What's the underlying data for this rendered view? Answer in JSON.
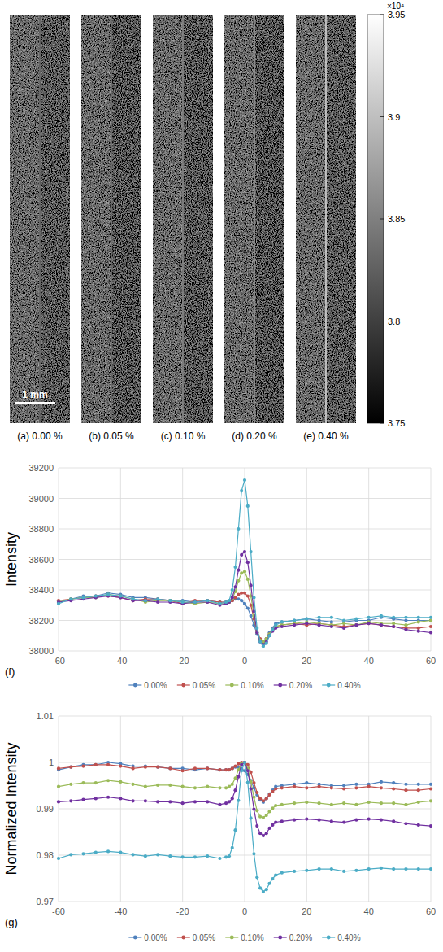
{
  "chart_data": [
    {
      "type": "image",
      "panels": [
        {
          "label": "(a) 0.00 %",
          "left": 38330,
          "right": 38200,
          "edge": 38330
        },
        {
          "label": "(b) 0.05 %",
          "left": 38330,
          "right": 38170,
          "edge": 38380
        },
        {
          "label": "(c) 0.10 %",
          "left": 38330,
          "right": 38180,
          "edge": 38520
        },
        {
          "label": "(d) 0.20 %",
          "left": 38330,
          "right": 38160,
          "edge": 38650
        },
        {
          "label": "(e) 0.40 %",
          "left": 38330,
          "right": 38210,
          "edge": 39120
        }
      ],
      "scale_bar": "1 mm",
      "colorbar": {
        "lim": [
          37500,
          39500
        ],
        "ticks": [
          {
            "value": 37500,
            "label": "3.75"
          },
          {
            "value": 38000,
            "label": "3.8"
          },
          {
            "value": 38500,
            "label": "3.85"
          },
          {
            "value": 39000,
            "label": "3.9"
          },
          {
            "value": 39500,
            "label": "3.95"
          }
        ],
        "multiplier": "×10⁴"
      }
    },
    {
      "type": "line",
      "panel": "(f)",
      "ylabel": "Intensity",
      "x": [
        -60,
        -56,
        -52,
        -48,
        -44,
        -40,
        -36,
        -32,
        -28,
        -24,
        -20,
        -16,
        -12,
        -8,
        -6,
        -5,
        -4,
        -3,
        -2,
        -1,
        0,
        1,
        2,
        3,
        4,
        5,
        6,
        7,
        8,
        9,
        10,
        12,
        16,
        20,
        24,
        28,
        32,
        36,
        40,
        44,
        48,
        52,
        56,
        60
      ],
      "xlim": [
        -60,
        60
      ],
      "xticks": [
        -60,
        -40,
        -20,
        0,
        20,
        40,
        60
      ],
      "ylim": [
        38000,
        39200
      ],
      "yticks": [
        38000,
        38200,
        38400,
        38600,
        38800,
        39000,
        39200
      ],
      "grid": true,
      "legend": "bottom",
      "marker": "circle",
      "series": [
        {
          "name": "0.00%",
          "color": "#4f81bd",
          "values": [
            38320,
            38340,
            38360,
            38360,
            38380,
            38370,
            38350,
            38350,
            38340,
            38330,
            38330,
            38320,
            38330,
            38320,
            38320,
            38320,
            38330,
            38340,
            38340,
            38330,
            38310,
            38280,
            38230,
            38170,
            38110,
            38070,
            38050,
            38080,
            38120,
            38150,
            38180,
            38190,
            38200,
            38210,
            38200,
            38190,
            38190,
            38200,
            38200,
            38220,
            38210,
            38200,
            38200,
            38200
          ]
        },
        {
          "name": "0.05%",
          "color": "#c0504d",
          "values": [
            38330,
            38340,
            38350,
            38360,
            38360,
            38350,
            38330,
            38340,
            38340,
            38330,
            38310,
            38330,
            38330,
            38320,
            38320,
            38320,
            38330,
            38350,
            38370,
            38380,
            38380,
            38360,
            38300,
            38210,
            38130,
            38080,
            38060,
            38080,
            38110,
            38140,
            38160,
            38170,
            38180,
            38170,
            38180,
            38170,
            38160,
            38170,
            38180,
            38170,
            38160,
            38150,
            38150,
            38160
          ]
        },
        {
          "name": "0.10%",
          "color": "#9bbb59",
          "values": [
            38320,
            38340,
            38350,
            38350,
            38370,
            38360,
            38340,
            38320,
            38330,
            38330,
            38320,
            38310,
            38320,
            38310,
            38310,
            38320,
            38340,
            38390,
            38460,
            38510,
            38520,
            38470,
            38360,
            38230,
            38120,
            38070,
            38060,
            38080,
            38110,
            38140,
            38160,
            38170,
            38180,
            38190,
            38180,
            38170,
            38180,
            38170,
            38190,
            38180,
            38180,
            38170,
            38190,
            38200
          ]
        },
        {
          "name": "0.20%",
          "color": "#7030a0",
          "values": [
            38320,
            38330,
            38340,
            38350,
            38360,
            38350,
            38330,
            38330,
            38320,
            38320,
            38310,
            38320,
            38320,
            38300,
            38310,
            38320,
            38350,
            38420,
            38530,
            38630,
            38650,
            38580,
            38430,
            38260,
            38120,
            38060,
            38040,
            38060,
            38100,
            38130,
            38150,
            38160,
            38170,
            38180,
            38170,
            38160,
            38150,
            38170,
            38180,
            38170,
            38160,
            38140,
            38130,
            38120
          ]
        },
        {
          "name": "0.40%",
          "color": "#4bacc6",
          "values": [
            38310,
            38340,
            38350,
            38360,
            38370,
            38360,
            38340,
            38330,
            38340,
            38330,
            38320,
            38320,
            38330,
            38310,
            38320,
            38330,
            38400,
            38550,
            38800,
            39050,
            39120,
            38950,
            38650,
            38350,
            38150,
            38060,
            38030,
            38050,
            38100,
            38140,
            38170,
            38190,
            38200,
            38210,
            38220,
            38220,
            38200,
            38210,
            38220,
            38230,
            38220,
            38220,
            38220,
            38220
          ]
        }
      ]
    },
    {
      "type": "line",
      "panel": "(g)",
      "ylabel": "Normalized Intensity",
      "x": [
        -60,
        -56,
        -52,
        -48,
        -44,
        -40,
        -36,
        -32,
        -28,
        -24,
        -20,
        -16,
        -12,
        -8,
        -6,
        -5,
        -4,
        -3,
        -2,
        -1,
        0,
        1,
        2,
        3,
        4,
        5,
        6,
        7,
        8,
        9,
        10,
        12,
        16,
        20,
        24,
        28,
        32,
        36,
        40,
        44,
        48,
        52,
        56,
        60
      ],
      "xlim": [
        -60,
        60
      ],
      "xticks": [
        -60,
        -40,
        -20,
        0,
        20,
        40,
        60
      ],
      "ylim": [
        0.97,
        1.01
      ],
      "yticks": [
        0.97,
        0.98,
        0.99,
        1,
        1.01
      ],
      "grid": true,
      "legend": "bottom",
      "marker": "circle",
      "series": [
        {
          "name": "0.00%",
          "color": "#4f81bd",
          "values": [
            0.9984,
            0.999,
            0.9995,
            0.9995,
            1,
            0.9997,
            0.9992,
            0.9992,
            0.999,
            0.9987,
            0.9987,
            0.9984,
            0.9987,
            0.9984,
            0.9984,
            0.9984,
            0.9987,
            0.999,
            0.999,
            0.9987,
            0.9982,
            0.9974,
            0.9961,
            0.9945,
            0.993,
            0.9919,
            0.9914,
            0.9922,
            0.9932,
            0.994,
            0.9948,
            0.995,
            0.9953,
            0.9956,
            0.9953,
            0.995,
            0.995,
            0.9953,
            0.9953,
            0.9958,
            0.9956,
            0.9953,
            0.9953,
            0.9953
          ]
        },
        {
          "name": "0.05%",
          "color": "#c0504d",
          "values": [
            0.9987,
            0.999,
            0.9992,
            0.9995,
            0.9995,
            0.9992,
            0.9987,
            0.999,
            0.999,
            0.9987,
            0.9982,
            0.9987,
            0.9987,
            0.9984,
            0.9984,
            0.9984,
            0.9987,
            0.9992,
            0.9997,
            1,
            1,
            0.9995,
            0.9979,
            0.9956,
            0.9935,
            0.9922,
            0.9917,
            0.9922,
            0.993,
            0.9937,
            0.9943,
            0.9945,
            0.9948,
            0.9945,
            0.9948,
            0.9945,
            0.9943,
            0.9945,
            0.9948,
            0.9945,
            0.9943,
            0.994,
            0.994,
            0.9943
          ]
        },
        {
          "name": "0.10%",
          "color": "#9bbb59",
          "values": [
            0.9948,
            0.9953,
            0.9956,
            0.9956,
            0.9961,
            0.9958,
            0.9953,
            0.9948,
            0.9951,
            0.9951,
            0.9948,
            0.9945,
            0.9948,
            0.9945,
            0.9945,
            0.9948,
            0.9953,
            0.9966,
            0.9984,
            0.9997,
            1,
            0.9987,
            0.9958,
            0.9925,
            0.9896,
            0.9883,
            0.9881,
            0.9886,
            0.9894,
            0.9901,
            0.9907,
            0.9909,
            0.9912,
            0.9914,
            0.9912,
            0.9909,
            0.9912,
            0.9909,
            0.9914,
            0.9912,
            0.9912,
            0.9909,
            0.9914,
            0.9917
          ]
        },
        {
          "name": "0.20%",
          "color": "#7030a0",
          "values": [
            0.9915,
            0.9917,
            0.992,
            0.9922,
            0.9925,
            0.9922,
            0.9917,
            0.9917,
            0.9915,
            0.9915,
            0.9912,
            0.9915,
            0.9915,
            0.9909,
            0.9912,
            0.9915,
            0.9922,
            0.994,
            0.9969,
            0.9995,
            1,
            0.9982,
            0.9943,
            0.9899,
            0.9863,
            0.9847,
            0.9842,
            0.9847,
            0.9858,
            0.9865,
            0.9871,
            0.9873,
            0.9876,
            0.9878,
            0.9876,
            0.9873,
            0.9871,
            0.9876,
            0.9878,
            0.9876,
            0.9873,
            0.9868,
            0.9865,
            0.9863
          ]
        },
        {
          "name": "0.40%",
          "color": "#4bacc6",
          "values": [
            0.9793,
            0.9801,
            0.9803,
            0.9806,
            0.9808,
            0.9806,
            0.9801,
            0.9798,
            0.9801,
            0.9798,
            0.9796,
            0.9796,
            0.9798,
            0.9793,
            0.9796,
            0.9798,
            0.9816,
            0.9854,
            0.9918,
            0.9982,
            1,
            0.9957,
            0.988,
            0.9803,
            0.9752,
            0.9729,
            0.9721,
            0.9726,
            0.9739,
            0.9749,
            0.9757,
            0.9762,
            0.9765,
            0.9767,
            0.977,
            0.977,
            0.9765,
            0.9767,
            0.977,
            0.9772,
            0.977,
            0.977,
            0.977,
            0.977
          ]
        }
      ]
    }
  ]
}
